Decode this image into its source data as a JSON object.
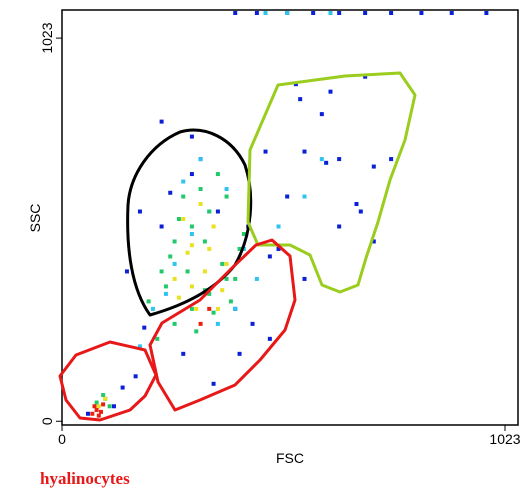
{
  "chart_data": {
    "type": "scatter",
    "xlabel": "FSC",
    "ylabel": "SSC",
    "xlim": [
      0,
      1053
    ],
    "ylim": [
      -10,
      1098
    ],
    "xticks": [
      0,
      1023
    ],
    "yticks": [
      0,
      1023
    ],
    "series": [
      {
        "color": "#0a1fd6",
        "x": [
          60,
          120,
          140,
          170,
          190,
          230,
          250,
          280,
          300,
          320,
          360,
          400,
          440,
          480,
          520,
          560,
          600,
          640,
          680,
          720,
          620,
          700,
          550,
          470,
          300,
          230,
          180,
          150,
          350,
          410,
          480,
          560,
          640,
          720,
          760,
          540,
          610,
          690,
          430,
          500,
          400,
          450,
          520,
          580,
          640,
          700,
          760,
          830,
          900,
          980
        ],
        "values": [
          20,
          40,
          90,
          120,
          250,
          520,
          610,
          180,
          660,
          700,
          560,
          300,
          260,
          440,
          600,
          720,
          820,
          700,
          580,
          480,
          880,
          920,
          860,
          720,
          760,
          800,
          560,
          400,
          100,
          180,
          220,
          380,
          520,
          680,
          700,
          900,
          690,
          560,
          520,
          460,
          1090,
          1090,
          1090,
          1090,
          1090,
          1090,
          1090,
          1090,
          1090,
          1090
        ]
      },
      {
        "color": "#2ec4f0",
        "x": [
          100,
          180,
          210,
          260,
          300,
          340,
          380,
          420,
          450,
          240,
          280,
          320,
          360,
          400,
          500,
          560,
          600,
          520,
          470,
          620
        ],
        "values": [
          60,
          200,
          300,
          420,
          500,
          560,
          620,
          460,
          380,
          340,
          640,
          700,
          260,
          300,
          520,
          600,
          700,
          1090,
          1090,
          1090
        ]
      },
      {
        "color": "#22c96a",
        "x": [
          80,
          95,
          110,
          220,
          260,
          300,
          340,
          380,
          260,
          300,
          340,
          380,
          420,
          250,
          290,
          330,
          370,
          410,
          280,
          320,
          360,
          400,
          200,
          240,
          350,
          390,
          310,
          270,
          230,
          330
        ],
        "values": [
          50,
          70,
          40,
          220,
          260,
          300,
          340,
          380,
          480,
          520,
          560,
          600,
          500,
          440,
          400,
          350,
          420,
          460,
          600,
          620,
          660,
          380,
          320,
          360,
          290,
          320,
          240,
          540,
          400,
          480
        ]
      },
      {
        "color": "#e8e020",
        "x": [
          85,
          100,
          270,
          300,
          330,
          360,
          280,
          320,
          350,
          300,
          340,
          380,
          260,
          310,
          290,
          370
        ],
        "values": [
          40,
          60,
          330,
          360,
          400,
          300,
          540,
          580,
          520,
          470,
          460,
          420,
          380,
          300,
          450,
          350
        ]
      },
      {
        "color": "#e82010",
        "x": [
          70,
          80,
          90,
          75,
          85,
          95,
          320,
          340
        ],
        "values": [
          20,
          30,
          25,
          40,
          15,
          45,
          260,
          300
        ]
      }
    ]
  },
  "caption": "hyalinocytes"
}
